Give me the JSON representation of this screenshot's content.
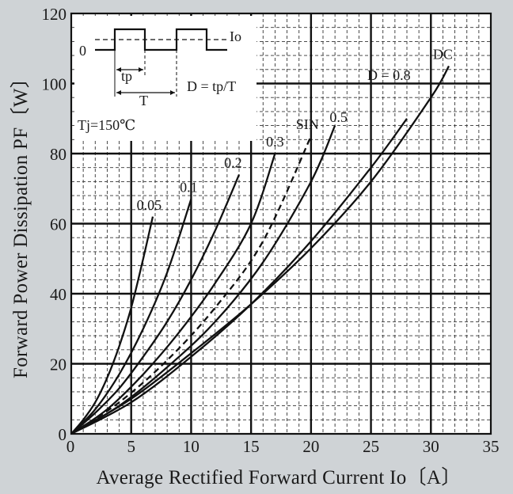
{
  "chart_data": {
    "type": "line",
    "xlabel": "Average Rectified Forward Current  Io〔A〕",
    "ylabel": "Forward Power Dissipation  PF〔W〕",
    "xlim": [
      0,
      35
    ],
    "ylim": [
      0,
      120
    ],
    "x_ticks": [
      0,
      5,
      10,
      15,
      20,
      25,
      30,
      35
    ],
    "y_ticks": [
      0,
      20,
      40,
      60,
      80,
      100,
      120
    ],
    "grid": "major solid, minor dashed",
    "series": [
      {
        "name": "0.05",
        "dashed": false,
        "x": [
          0,
          1,
          2,
          3,
          4,
          5,
          6,
          6.8
        ],
        "y": [
          0,
          4,
          9,
          16,
          25,
          36,
          50,
          62
        ]
      },
      {
        "name": "0.1",
        "dashed": false,
        "x": [
          0,
          2,
          4,
          6,
          8,
          10
        ],
        "y": [
          0,
          7,
          17,
          30,
          46,
          67
        ]
      },
      {
        "name": "0.2",
        "dashed": false,
        "x": [
          0,
          2,
          4,
          6,
          8,
          10,
          12,
          14
        ],
        "y": [
          0,
          6,
          13,
          22,
          32,
          44,
          58,
          74
        ]
      },
      {
        "name": "0.3",
        "dashed": false,
        "x": [
          0,
          3,
          6,
          9,
          12,
          15,
          17
        ],
        "y": [
          0,
          7,
          17,
          29,
          43,
          60,
          80
        ]
      },
      {
        "name": "SIN",
        "dashed": true,
        "x": [
          0,
          4,
          8,
          12,
          16,
          20
        ],
        "y": [
          0,
          9,
          21,
          36,
          55,
          85
        ]
      },
      {
        "name": "0.5",
        "dashed": false,
        "x": [
          0,
          4,
          8,
          12,
          16,
          20,
          22
        ],
        "y": [
          0,
          8,
          19,
          32,
          49,
          72,
          88
        ]
      },
      {
        "name": "D = 0.8",
        "dashed": false,
        "x": [
          0,
          5,
          10,
          15,
          20,
          25,
          28
        ],
        "y": [
          0,
          9,
          22,
          37,
          55,
          76,
          90
        ]
      },
      {
        "name": "DC",
        "dashed": false,
        "x": [
          0,
          5,
          10,
          15,
          20,
          25,
          30,
          31.5
        ],
        "y": [
          0,
          10,
          23,
          37,
          53,
          72,
          96,
          105
        ]
      }
    ],
    "curve_labels": [
      {
        "text": "0.05",
        "x": 6.5,
        "y": 64
      },
      {
        "text": "0.1",
        "x": 9.8,
        "y": 69
      },
      {
        "text": "0.2",
        "x": 13.5,
        "y": 76
      },
      {
        "text": "0.3",
        "x": 17.0,
        "y": 82
      },
      {
        "text": "SIN",
        "x": 19.7,
        "y": 87
      },
      {
        "text": "0.5",
        "x": 22.3,
        "y": 89
      },
      {
        "text": "D = 0.8",
        "x": 26.5,
        "y": 101
      },
      {
        "text": "DC",
        "x": 31.0,
        "y": 107
      }
    ],
    "annotations": {
      "pulse_zero": "0",
      "pulse_level": "Io",
      "tp": "tp",
      "period": "T",
      "duty_formula": "D = tp/T",
      "junction_temp": "Tj=150℃"
    }
  }
}
